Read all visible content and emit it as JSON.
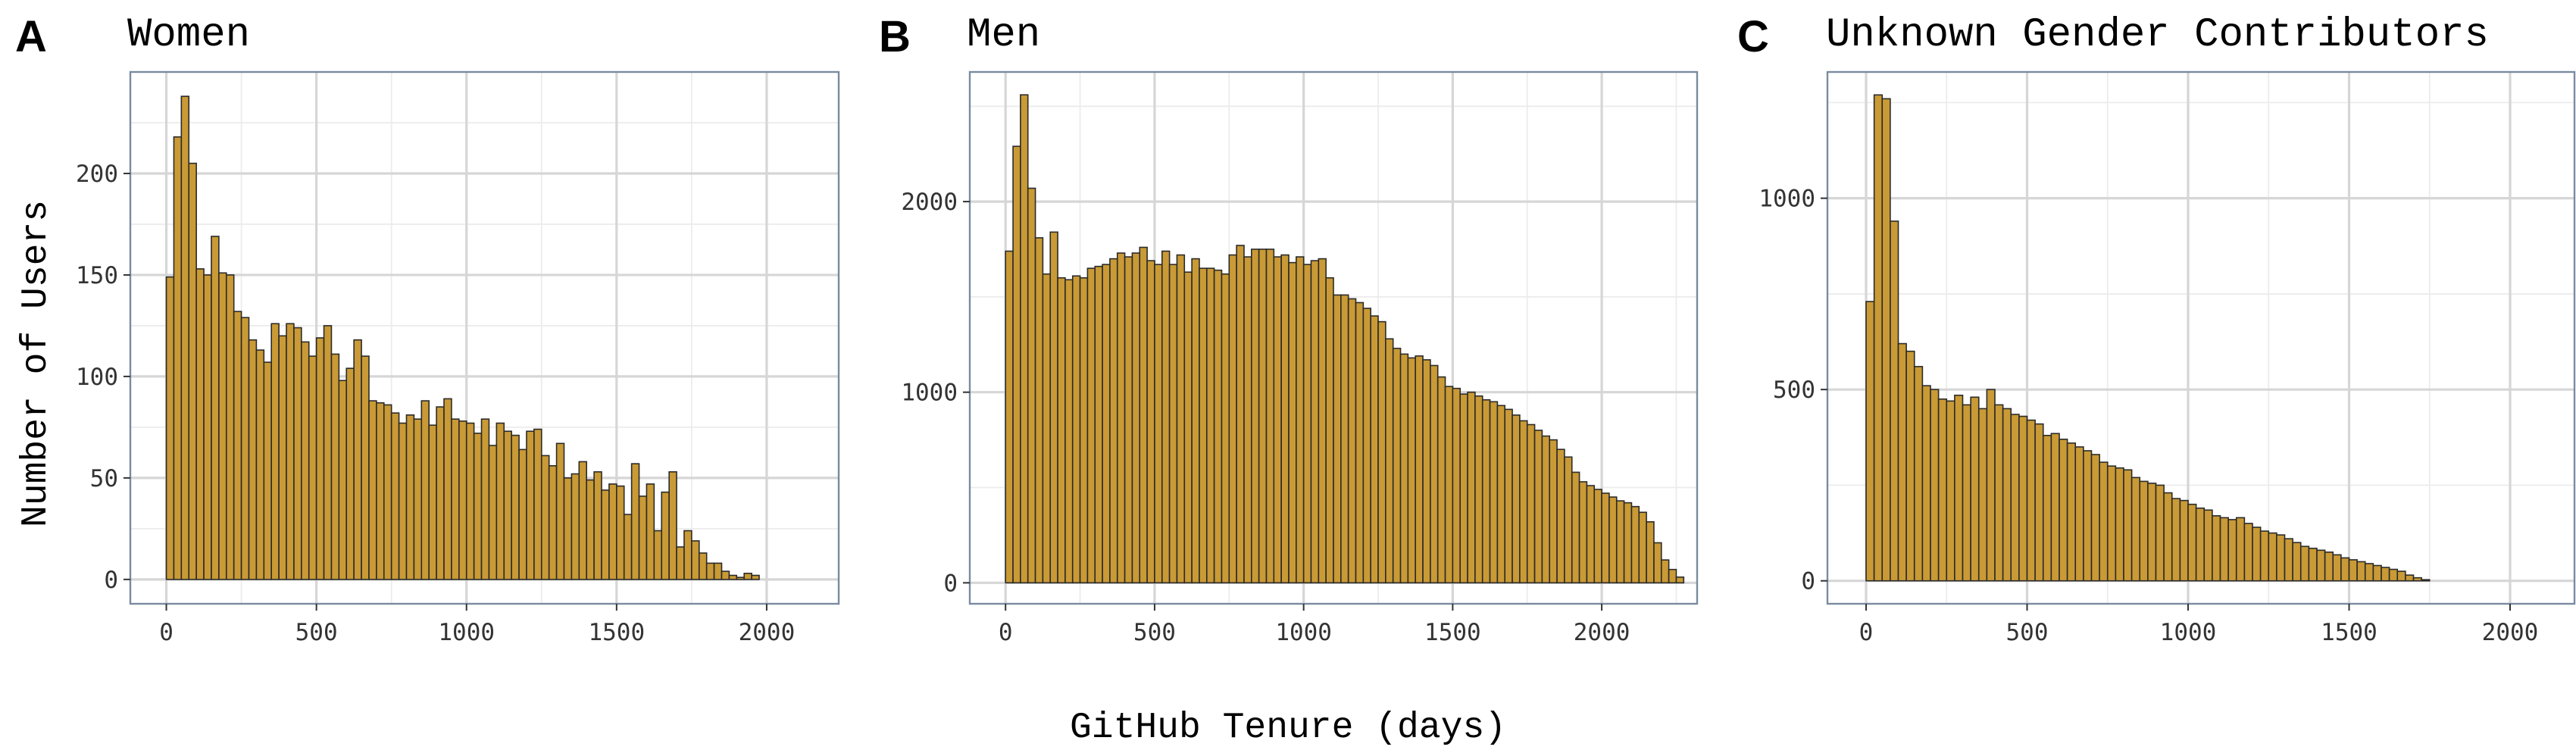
{
  "figure": {
    "xlabel": "GitHub Tenure (days)",
    "ylabel": "Number of Users",
    "bar_color": "#c99a35",
    "bar_edge_color": "#2b2b2b"
  },
  "chart_data": [
    {
      "type": "bar",
      "panel": "A",
      "title": "Women",
      "xlabel": "",
      "ylabel": "Number of Users",
      "x_ticks": [
        0,
        500,
        1000,
        1500,
        2000
      ],
      "y_ticks": [
        0,
        50,
        100,
        150,
        200
      ],
      "xlim": [
        -120,
        2240
      ],
      "ylim": [
        -12,
        250
      ],
      "grid": true,
      "bin_width": 25,
      "bin_start": 0,
      "values": [
        149,
        218,
        238,
        205,
        153,
        150,
        169,
        151,
        150,
        132,
        129,
        118,
        113,
        107,
        126,
        120,
        126,
        124,
        117,
        110,
        119,
        125,
        111,
        98,
        104,
        118,
        110,
        88,
        87,
        86,
        82,
        77,
        81,
        79,
        88,
        76,
        85,
        89,
        79,
        78,
        77,
        72,
        79,
        66,
        77,
        73,
        71,
        64,
        73,
        74,
        61,
        56,
        67,
        50,
        52,
        58,
        49,
        53,
        44,
        47,
        46,
        32,
        57,
        41,
        47,
        24,
        43,
        53,
        16,
        24,
        19,
        13,
        8,
        8,
        4,
        2,
        1,
        3,
        2
      ]
    },
    {
      "type": "bar",
      "panel": "B",
      "title": "Men",
      "xlabel": "",
      "ylabel": "",
      "x_ticks": [
        0,
        500,
        1000,
        1500,
        2000
      ],
      "y_ticks": [
        0,
        1000,
        2000
      ],
      "xlim": [
        -120,
        2320
      ],
      "ylim": [
        -110,
        2680
      ],
      "grid": true,
      "bin_width": 25,
      "bin_start": 0,
      "values": [
        1740,
        2290,
        2560,
        2070,
        1810,
        1620,
        1840,
        1600,
        1590,
        1610,
        1600,
        1650,
        1660,
        1670,
        1700,
        1730,
        1710,
        1730,
        1760,
        1690,
        1670,
        1740,
        1670,
        1720,
        1630,
        1700,
        1650,
        1650,
        1640,
        1620,
        1720,
        1770,
        1710,
        1750,
        1750,
        1750,
        1710,
        1720,
        1680,
        1710,
        1670,
        1690,
        1700,
        1600,
        1510,
        1510,
        1490,
        1470,
        1440,
        1400,
        1370,
        1280,
        1230,
        1200,
        1180,
        1190,
        1170,
        1140,
        1080,
        1030,
        1020,
        990,
        1000,
        980,
        960,
        950,
        930,
        910,
        880,
        850,
        830,
        800,
        770,
        750,
        700,
        660,
        580,
        530,
        510,
        490,
        470,
        450,
        430,
        420,
        400,
        370,
        320,
        210,
        120,
        70,
        30,
        0
      ]
    },
    {
      "type": "bar",
      "panel": "C",
      "title": "Unknown Gender Contributors",
      "xlabel": "",
      "ylabel": "",
      "x_ticks": [
        0,
        500,
        1000,
        1500,
        2000
      ],
      "y_ticks": [
        0,
        500,
        1000
      ],
      "xlim": [
        -120,
        2200
      ],
      "ylim": [
        -60,
        1330
      ],
      "grid": true,
      "bin_width": 25,
      "bin_start": 0,
      "values": [
        730,
        1270,
        1260,
        940,
        620,
        600,
        560,
        510,
        500,
        475,
        470,
        485,
        460,
        480,
        450,
        500,
        460,
        450,
        435,
        430,
        420,
        410,
        380,
        385,
        370,
        360,
        350,
        340,
        330,
        310,
        300,
        295,
        290,
        270,
        260,
        255,
        250,
        230,
        215,
        210,
        200,
        190,
        185,
        170,
        165,
        160,
        165,
        150,
        140,
        130,
        125,
        120,
        110,
        100,
        90,
        85,
        80,
        75,
        68,
        60,
        55,
        50,
        45,
        40,
        35,
        30,
        25,
        15,
        8,
        3
      ]
    }
  ]
}
